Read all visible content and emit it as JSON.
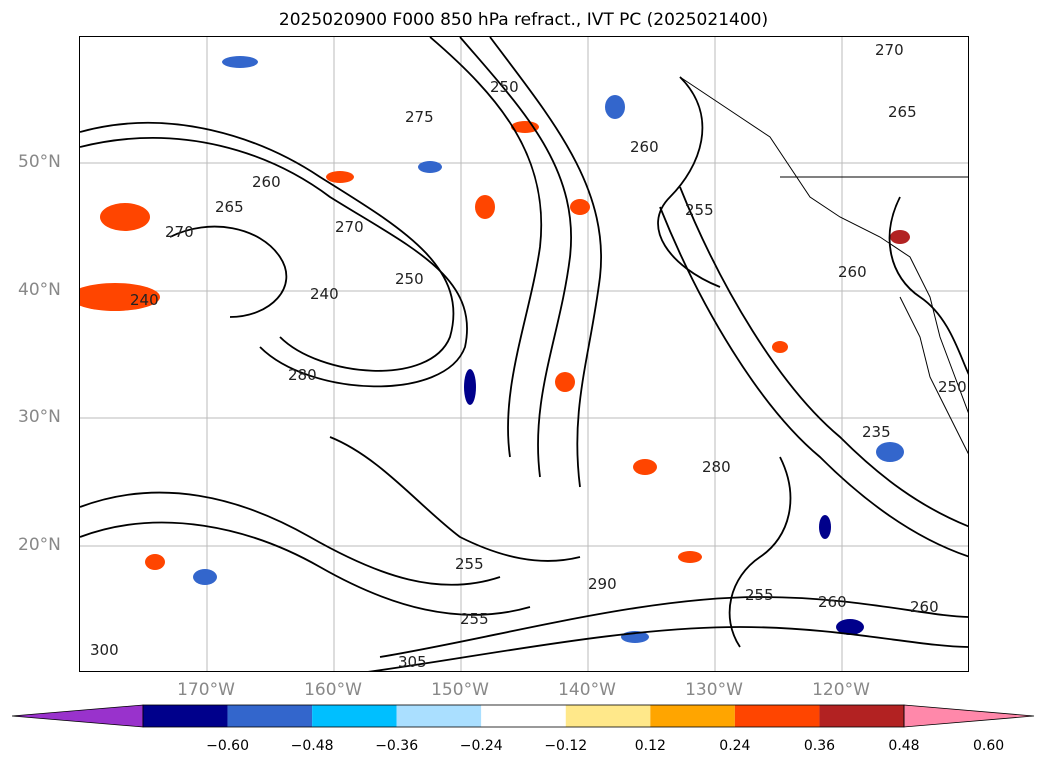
{
  "title": "2025020900 F000 850 hPa refract., IVT PC (2025021400)",
  "lat_labels": [
    "50°N",
    "40°N",
    "30°N",
    "20°N"
  ],
  "lon_labels": [
    "170°W",
    "160°W",
    "150°W",
    "140°W",
    "130°W",
    "120°W"
  ],
  "colorbar": {
    "tick_labels": [
      "−0.60",
      "−0.48",
      "−0.36",
      "−0.24",
      "−0.12",
      "0.12",
      "0.24",
      "0.36",
      "0.48",
      "0.60"
    ],
    "colors": [
      "#9932cc",
      "#00008b",
      "#3366cc",
      "#00bfff",
      "#aadfff",
      "#ffffff",
      "#ffe88a",
      "#ffa500",
      "#ff4500",
      "#b22222",
      "#ff88aa"
    ]
  },
  "contour_labels": [
    "270",
    "265",
    "250",
    "275",
    "260",
    "260",
    "265",
    "270",
    "255",
    "260",
    "270",
    "240",
    "250",
    "240",
    "280",
    "250",
    "280",
    "235",
    "255",
    "290",
    "255",
    "255",
    "260",
    "260",
    "300",
    "305"
  ]
}
